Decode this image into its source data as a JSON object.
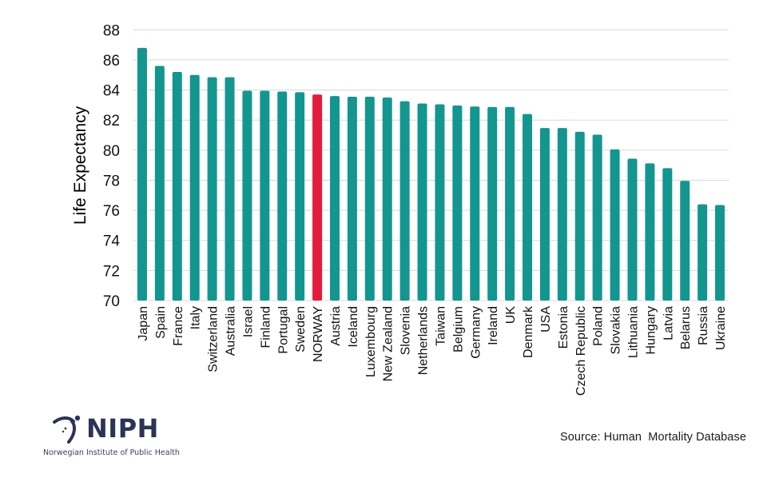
{
  "chart_data": {
    "type": "bar",
    "title": "",
    "xlabel": "",
    "ylabel": "Life Expectancy",
    "ylim": [
      70,
      88
    ],
    "yticks": [
      "70",
      "72",
      "74",
      "76",
      "78",
      "80",
      "82",
      "84",
      "86",
      "88"
    ],
    "grid": true,
    "legend": null,
    "categories": [
      "Japan",
      "Spain",
      "France",
      "Italy",
      "Switzerland",
      "Australia",
      "Israel",
      "Finland",
      "Portugal",
      "Sweden",
      "NORWAY",
      "Austria",
      "Iceland",
      "Luxembourg",
      "New Zealand",
      "Slovenia",
      "Netherlands",
      "Taiwan",
      "Belgium",
      "Germany",
      "Ireland",
      "UK",
      "Denmark",
      "USA",
      "Estonia",
      "Czech Republic",
      "Poland",
      "Slovakia",
      "Lithuania",
      "Hungary",
      "Latvia",
      "Belarus",
      "Russia",
      "Ukraine"
    ],
    "values": [
      86.8,
      85.6,
      85.2,
      85.0,
      84.85,
      84.85,
      83.95,
      83.95,
      83.9,
      83.85,
      83.7,
      83.6,
      83.55,
      83.55,
      83.5,
      83.25,
      83.1,
      83.05,
      82.97,
      82.9,
      82.87,
      82.87,
      82.4,
      81.47,
      81.47,
      81.22,
      81.03,
      80.05,
      79.43,
      79.12,
      78.8,
      77.96,
      76.4,
      76.35
    ],
    "highlight": "NORWAY",
    "colors": {
      "default": "#12968f",
      "highlight": "#e31c3d"
    }
  },
  "footer": {
    "source": "Source: Human  Mortality Database",
    "logo_text": "NIPH",
    "logo_subtitle": "Norwegian Institute of Public Health",
    "logo_color": "#2c3359"
  }
}
